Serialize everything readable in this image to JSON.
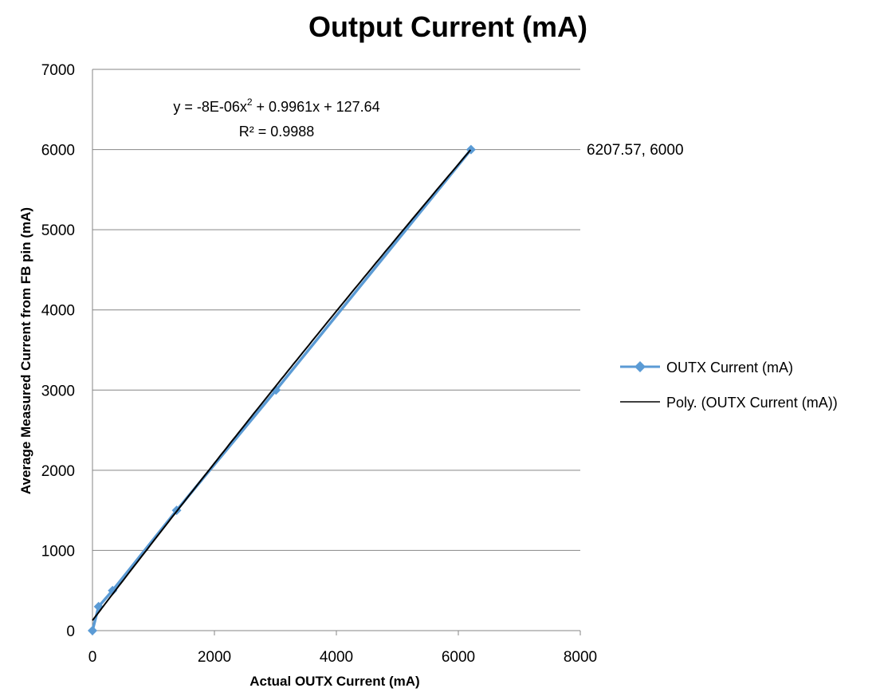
{
  "chart_data": {
    "type": "scatter",
    "title": "Output Current (mA)",
    "xlabel": "Actual OUTX Current (mA)",
    "ylabel": "Average Measured  Current from FB pin (mA)",
    "xlim": [
      0,
      8000
    ],
    "ylim": [
      0,
      7000
    ],
    "xticks": [
      "0",
      "2000",
      "4000",
      "6000",
      "8000"
    ],
    "yticks": [
      "0",
      "1000",
      "2000",
      "3000",
      "4000",
      "5000",
      "6000",
      "7000"
    ],
    "grid": "horizontal",
    "legend_position": "right",
    "series": [
      {
        "name": "OUTX Current (mA)",
        "color": "#5b9bd5",
        "marker": "diamond",
        "x": [
          0,
          100,
          330,
          1380,
          3010,
          6207.57
        ],
        "y": [
          0,
          300,
          500,
          1500,
          3000,
          6000
        ]
      }
    ],
    "trendline": {
      "name": "Poly. (OUTX Current (mA))",
      "color": "#000000",
      "coefficients": {
        "a": -8e-06,
        "b": 0.9961,
        "c": 127.64
      },
      "equation_prefix": "y = -8E-06x",
      "equation_exp": "2",
      "equation_suffix": " + 0.9961x + 127.64",
      "r2_text": "R² = 0.9988"
    },
    "annotation": {
      "x": 6207.57,
      "y": 6000,
      "text": "6207.57, 6000"
    }
  }
}
